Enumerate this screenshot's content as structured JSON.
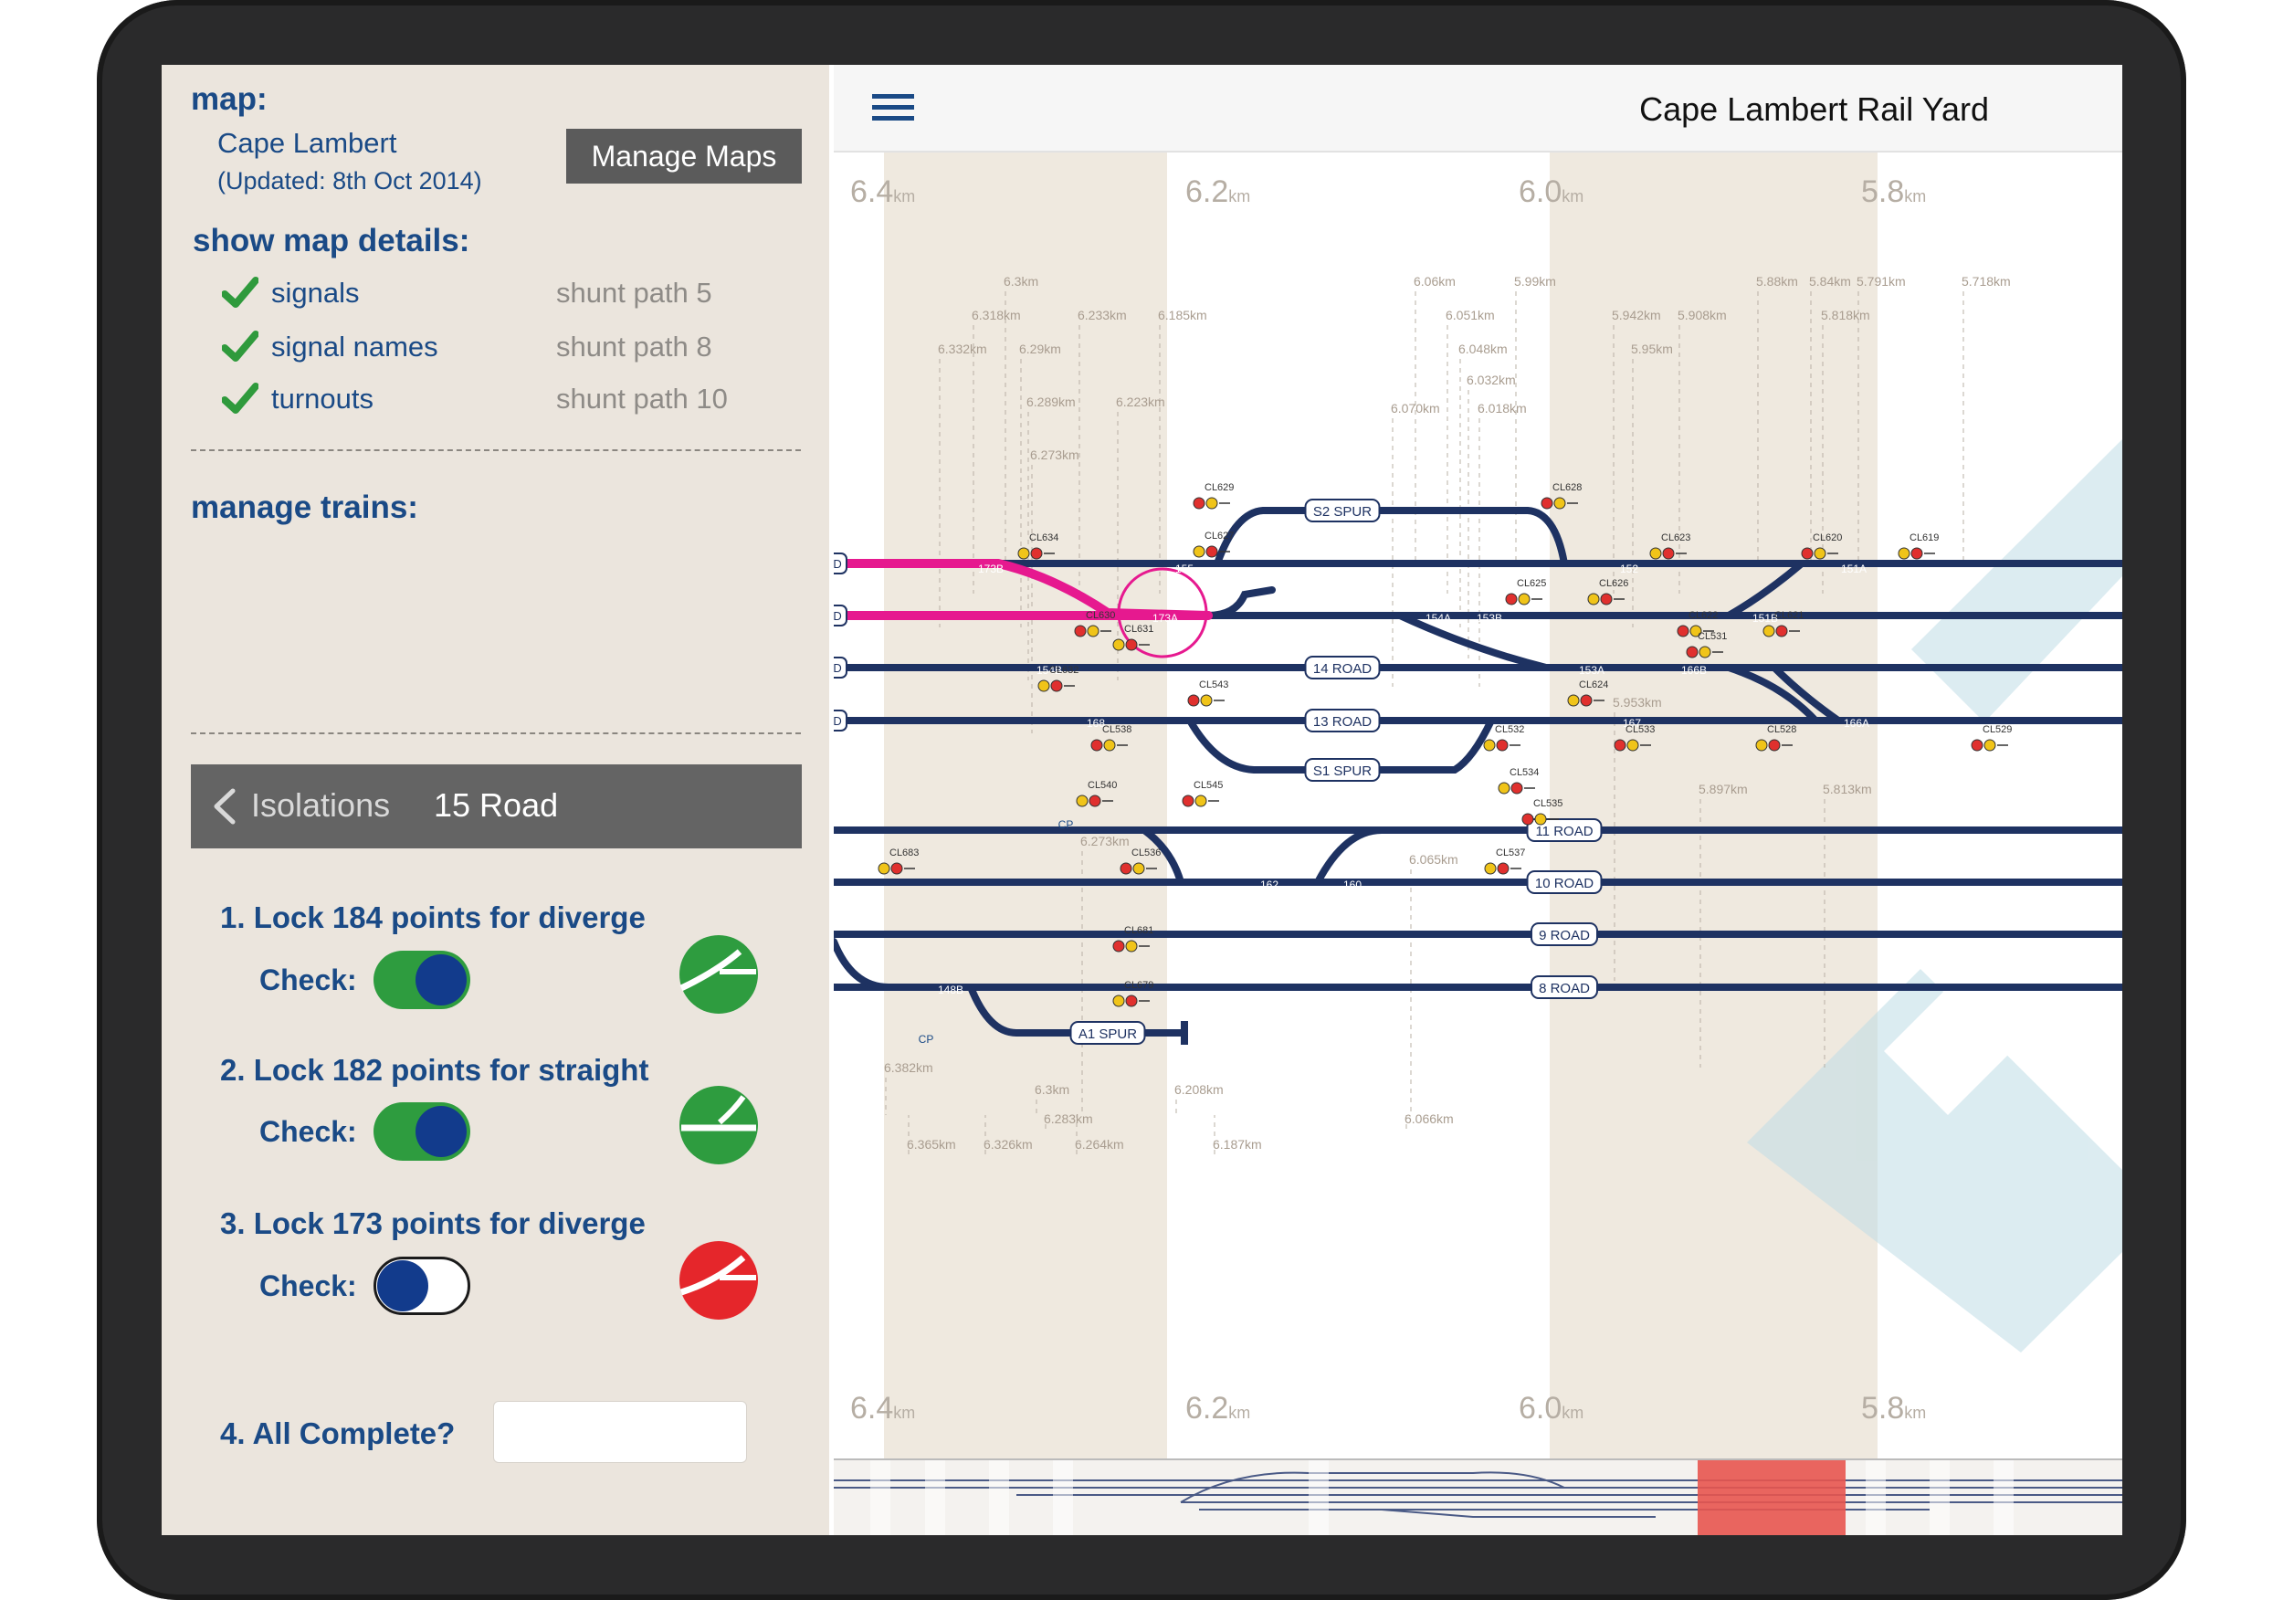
{
  "left": {
    "map_heading": "map:",
    "map_name": "Cape Lambert",
    "map_updated": "(Updated: 8th Oct 2014)",
    "manage_maps_label": "Manage Maps",
    "details_heading": "show map details:",
    "details": [
      {
        "label": "signals",
        "checked": true
      },
      {
        "label": "signal names",
        "checked": true
      },
      {
        "label": "turnouts",
        "checked": true
      }
    ],
    "shunt_paths": [
      "shunt path 5",
      "shunt path 8",
      "shunt path 10"
    ],
    "trains_heading": "manage trains:",
    "isolations": {
      "back_label": "Isolations",
      "title": "15 Road"
    },
    "steps": [
      {
        "label": "1. Lock 184 points for diverge",
        "check_label": "Check:",
        "checked": true,
        "status": "diverge-ok"
      },
      {
        "label": "2. Lock 182 points for straight",
        "check_label": "Check:",
        "checked": true,
        "status": "straight-ok"
      },
      {
        "label": "3. Lock 173 points for diverge",
        "check_label": "Check:",
        "checked": false,
        "status": "diverge-fail"
      }
    ],
    "complete_label": "4. All Complete?",
    "complete_value": ""
  },
  "right": {
    "title": "Cape Lambert Rail Yard",
    "km_markers": [
      {
        "num": "6.4",
        "unit": "km"
      },
      {
        "num": "6.2",
        "unit": "km"
      },
      {
        "num": "6.0",
        "unit": "km"
      },
      {
        "num": "5.8",
        "unit": "km"
      }
    ],
    "roads": [
      "S2 SPUR",
      "14 ROAD",
      "13 ROAD",
      "S1 SPUR",
      "11 ROAD",
      "10 ROAD",
      "9 ROAD",
      "8 ROAD",
      "A1 SPUR"
    ],
    "turnouts": [
      "173B",
      "155",
      "152",
      "151A",
      "173A",
      "154A",
      "153B",
      "151B",
      "154B",
      "153A",
      "166B",
      "168",
      "167",
      "166A",
      "162",
      "160",
      "148B"
    ],
    "signals": [
      "CL634",
      "CL629",
      "CL627",
      "CL628",
      "CL623",
      "CL620",
      "CL619",
      "CL625",
      "CL626",
      "CL630",
      "CL631",
      "CL622",
      "CL621",
      "CL531",
      "CL632",
      "CL543",
      "CL624",
      "CL538",
      "CL532",
      "CL533",
      "CL528",
      "CL529",
      "CL540",
      "CL545",
      "CL534",
      "CL535",
      "CL683",
      "CL536",
      "CL537",
      "CL681",
      "CL679"
    ],
    "cp_labels": [
      "CP",
      "CP"
    ],
    "track_ends": [
      "D",
      "D",
      "D",
      "D"
    ],
    "distance_labels": [
      "6.3km",
      "6.318km",
      "6.233km",
      "6.185km",
      "6.332km",
      "6.29km",
      "6.289km",
      "6.223km",
      "6.273km",
      "6.06km",
      "5.99km",
      "5.88km",
      "5.84km",
      "5.791km",
      "5.718km",
      "6.051km",
      "5.942km",
      "5.908km",
      "5.818km",
      "6.048km",
      "5.95km",
      "6.032km",
      "6.070km",
      "6.018km",
      "5.953km",
      "5.897km",
      "5.813km",
      "6.273km",
      "6.065km",
      "6.382km",
      "6.3km",
      "6.208km",
      "6.283km",
      "6.066km",
      "6.365km",
      "6.326km",
      "6.264km",
      "6.187km"
    ],
    "colors": {
      "track": "#1e3262",
      "active_path": "#e6198f",
      "band": "#efe9df",
      "diamond": "#bfdde6"
    }
  }
}
